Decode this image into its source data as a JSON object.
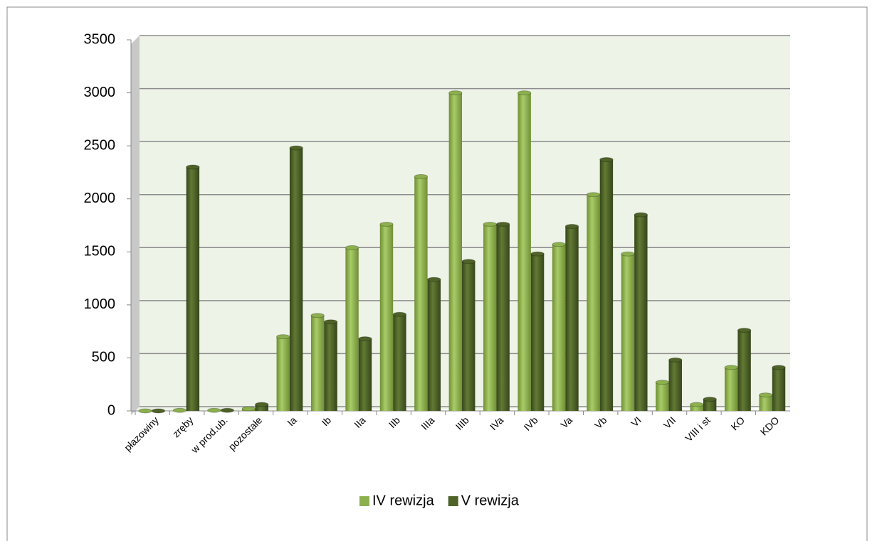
{
  "chart_data": {
    "type": "bar",
    "categories": [
      "płazowiny",
      "zręby",
      "w prod.ub.",
      "pozostałe",
      "Ia",
      "Ib",
      "IIa",
      "IIb",
      "IIIa",
      "IIIb",
      "IVa",
      "IVb",
      "Va",
      "Vb",
      "VI",
      "VII",
      "VIII i st",
      "KO",
      "KDO"
    ],
    "series": [
      {
        "name": "IV rewizja",
        "color": "#8db04e",
        "values": [
          0,
          5,
          5,
          20,
          700,
          900,
          1540,
          1760,
          2210,
          3000,
          1760,
          3000,
          1570,
          2040,
          1480,
          270,
          60,
          410,
          150
        ]
      },
      {
        "name": "V rewizja",
        "color": "#4f6228",
        "values": [
          0,
          2300,
          5,
          60,
          2480,
          840,
          680,
          910,
          1240,
          1410,
          1760,
          1480,
          1740,
          2370,
          1850,
          480,
          110,
          760,
          410
        ]
      }
    ],
    "ylim": [
      0,
      3500
    ],
    "yticks": [
      0,
      500,
      1000,
      1500,
      2000,
      2500,
      3000,
      3500
    ],
    "grid": true,
    "legend": "bottom"
  }
}
